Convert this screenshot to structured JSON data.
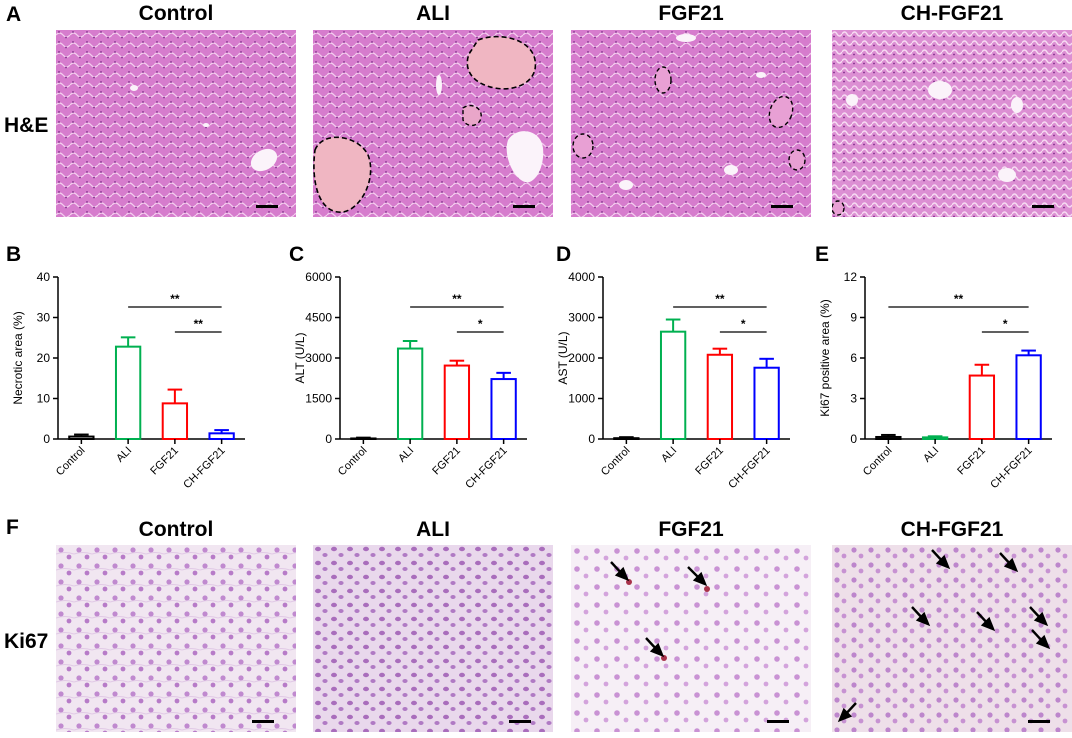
{
  "panels": {
    "A": "A",
    "B": "B",
    "C": "C",
    "D": "D",
    "E": "E",
    "F": "F"
  },
  "he_row": {
    "row_label": "H&E",
    "titles": [
      "Control",
      "ALI",
      "FGF21",
      "CH-FGF21"
    ]
  },
  "ki67_row": {
    "row_label": "Ki67",
    "titles": [
      "Control",
      "ALI",
      "FGF21",
      "CH-FGF21"
    ]
  },
  "colors": {
    "Control": "#000000",
    "ALI": "#00b050",
    "FGF21": "#ff0000",
    "CH-FGF21": "#0000ff",
    "he_tissue": "#d87fd0",
    "ki67_tissue": "#ece2ee"
  },
  "chart_data": [
    {
      "panel": "B",
      "type": "bar",
      "categories": [
        "Control",
        "ALI",
        "FGF21",
        "CH-FGF21"
      ],
      "values": [
        0.6,
        22.8,
        8.8,
        1.4
      ],
      "errors": [
        0.5,
        2.3,
        3.4,
        0.8
      ],
      "ylabel": "Necrotic area (%)",
      "ylim": [
        0,
        40
      ],
      "yticks": [
        "0",
        "10",
        "20",
        "30",
        "40"
      ],
      "significance": [
        {
          "from": 1,
          "to": 3,
          "label": "**"
        },
        {
          "from": 2,
          "to": 3,
          "label": "**"
        }
      ]
    },
    {
      "panel": "C",
      "type": "bar",
      "categories": [
        "Control",
        "ALI",
        "FGF21",
        "CH-FGF21"
      ],
      "values": [
        20,
        3350,
        2720,
        2220
      ],
      "errors": [
        30,
        280,
        180,
        230
      ],
      "ylabel": "ALT (U/L)",
      "ylim": [
        0,
        6000
      ],
      "yticks": [
        "0",
        "1500",
        "3000",
        "4500",
        "6000"
      ],
      "significance": [
        {
          "from": 1,
          "to": 3,
          "label": "**"
        },
        {
          "from": 2,
          "to": 3,
          "label": "*"
        }
      ]
    },
    {
      "panel": "D",
      "type": "bar",
      "categories": [
        "Control",
        "ALI",
        "FGF21",
        "CH-FGF21"
      ],
      "values": [
        20,
        2650,
        2080,
        1760
      ],
      "errors": [
        25,
        300,
        150,
        220
      ],
      "ylabel": "AST (U/L)",
      "ylim": [
        0,
        4000
      ],
      "yticks": [
        "0",
        "1000",
        "2000",
        "3000",
        "4000"
      ],
      "significance": [
        {
          "from": 1,
          "to": 3,
          "label": "**"
        },
        {
          "from": 2,
          "to": 3,
          "label": "*"
        }
      ]
    },
    {
      "panel": "E",
      "type": "bar",
      "categories": [
        "Control",
        "ALI",
        "FGF21",
        "CH-FGF21"
      ],
      "values": [
        0.15,
        0.12,
        4.7,
        6.2
      ],
      "errors": [
        0.15,
        0.08,
        0.8,
        0.35
      ],
      "ylabel": "Ki67 positive area (%)",
      "ylim": [
        0,
        12
      ],
      "yticks": [
        "0",
        "3",
        "6",
        "9",
        "12"
      ],
      "significance": [
        {
          "from": 0,
          "to": 3,
          "label": "**"
        },
        {
          "from": 2,
          "to": 3,
          "label": "*"
        }
      ]
    }
  ]
}
